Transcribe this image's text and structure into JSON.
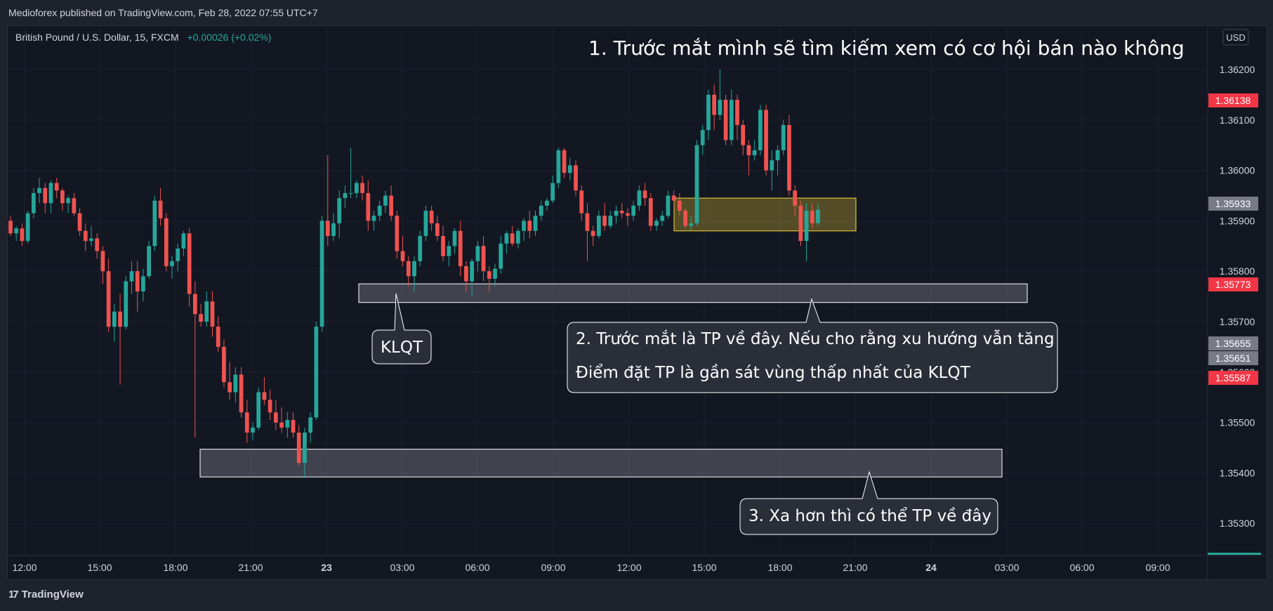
{
  "header": {
    "published_text": "Medioforex published on TradingView.com, Feb 28, 2022 07:55 UTC+7"
  },
  "footer": {
    "logo_text": "TradingView",
    "logo_glyph": "17"
  },
  "chart_info": {
    "symbol_text": "British Pound / U.S. Dollar, 15, FXCM",
    "change_text": "+0.00026 (+0.02%)",
    "currency_button": "USD"
  },
  "colors": {
    "up": "#26a69a",
    "down": "#ef5350",
    "background": "#131722",
    "panel": "#1e222d",
    "text": "#d1d4dc",
    "highlight_box": "#fdd835",
    "label_red": "#f23645",
    "label_gray": "#787b86"
  },
  "annotations": {
    "title": "1. Trước mắt mình sẽ tìm kiếm xem có cơ hội bán nào không",
    "klqt": "KLQT",
    "note2_line1": "2. Trước mắt là TP về đây. Nếu cho rằng xu hướng vẫn tăng",
    "note2_line2": "Điểm đặt TP là gần sát vùng thấp nhất của KLQT",
    "note3": "3. Xa hơn thì có thể TP về đây"
  },
  "price_labels": [
    {
      "text": "1.36138",
      "value": 1.36138,
      "color": "#f23645"
    },
    {
      "text": "1.35933",
      "value": 1.35933,
      "color": "#787b86"
    },
    {
      "text": "1.35773",
      "value": 1.35773,
      "color": "#f23645"
    },
    {
      "text": "1.35655",
      "value": 1.35655,
      "color": "#787b86"
    },
    {
      "text": "1.35651",
      "value": 1.35651,
      "color": "#787b86"
    },
    {
      "text": "1.35587",
      "value": 1.35587,
      "color": "#f23645"
    }
  ],
  "chart_data": {
    "type": "candlestick",
    "symbol": "GBPUSD",
    "timeframe": "15",
    "y_range": [
      1.3525,
      1.3624
    ],
    "y_ticks": [
      "1.36200",
      "1.36100",
      "1.36000",
      "1.35900",
      "1.35800",
      "1.35700",
      "1.35600",
      "1.35500",
      "1.35400",
      "1.35300"
    ],
    "x_ticks": [
      "12:00",
      "15:00",
      "18:00",
      "21:00",
      "23",
      "03:00",
      "06:00",
      "09:00",
      "12:00",
      "15:00",
      "18:00",
      "21:00",
      "24",
      "03:00",
      "06:00",
      "09:00"
    ],
    "zones": [
      {
        "name": "current-sell-zone",
        "top": 1.35945,
        "bottom": 1.3588
      },
      {
        "name": "klqt-tp-zone",
        "top": 1.35775,
        "bottom": 1.35738
      },
      {
        "name": "far-tp-zone",
        "top": 1.35447,
        "bottom": 1.35392
      }
    ],
    "candles": [
      [
        1.359,
        1.3591,
        1.3587,
        1.35875
      ],
      [
        1.35875,
        1.3589,
        1.3586,
        1.35885
      ],
      [
        1.35885,
        1.35895,
        1.3585,
        1.3586
      ],
      [
        1.3586,
        1.3592,
        1.35855,
        1.35915
      ],
      [
        1.35915,
        1.35965,
        1.35905,
        1.35955
      ],
      [
        1.35955,
        1.35985,
        1.35935,
        1.35965
      ],
      [
        1.35965,
        1.35975,
        1.35915,
        1.35935
      ],
      [
        1.35935,
        1.3598,
        1.35915,
        1.35975
      ],
      [
        1.35975,
        1.35985,
        1.35945,
        1.3596
      ],
      [
        1.3596,
        1.35965,
        1.3592,
        1.35935
      ],
      [
        1.35935,
        1.3595,
        1.35915,
        1.35945
      ],
      [
        1.35945,
        1.35955,
        1.3591,
        1.35915
      ],
      [
        1.35915,
        1.35925,
        1.3587,
        1.3588
      ],
      [
        1.3588,
        1.35895,
        1.3584,
        1.3586
      ],
      [
        1.3586,
        1.3589,
        1.3585,
        1.35865
      ],
      [
        1.35865,
        1.35875,
        1.35825,
        1.3584
      ],
      [
        1.3584,
        1.3585,
        1.35775,
        1.358
      ],
      [
        1.358,
        1.35825,
        1.3568,
        1.3569
      ],
      [
        1.3569,
        1.35735,
        1.3566,
        1.3572
      ],
      [
        1.3572,
        1.35755,
        1.35575,
        1.3569
      ],
      [
        1.3569,
        1.3579,
        1.35685,
        1.3578
      ],
      [
        1.3578,
        1.3582,
        1.35755,
        1.358
      ],
      [
        1.358,
        1.3582,
        1.3572,
        1.3576
      ],
      [
        1.3576,
        1.35805,
        1.3574,
        1.3579
      ],
      [
        1.3579,
        1.3586,
        1.35785,
        1.3585
      ],
      [
        1.3585,
        1.3595,
        1.3584,
        1.3594
      ],
      [
        1.3594,
        1.35965,
        1.3589,
        1.35905
      ],
      [
        1.35905,
        1.35915,
        1.358,
        1.3581
      ],
      [
        1.3581,
        1.3583,
        1.35785,
        1.3582
      ],
      [
        1.3582,
        1.35855,
        1.358,
        1.35845
      ],
      [
        1.35845,
        1.3588,
        1.3583,
        1.35875
      ],
      [
        1.35875,
        1.35885,
        1.3573,
        1.35755
      ],
      [
        1.35755,
        1.3578,
        1.3547,
        1.35715
      ],
      [
        1.35715,
        1.35735,
        1.3569,
        1.357
      ],
      [
        1.357,
        1.3576,
        1.3569,
        1.3574
      ],
      [
        1.3574,
        1.3576,
        1.3567,
        1.3569
      ],
      [
        1.3569,
        1.3571,
        1.3564,
        1.3565
      ],
      [
        1.3565,
        1.35665,
        1.3557,
        1.3558
      ],
      [
        1.3558,
        1.3562,
        1.35545,
        1.3556
      ],
      [
        1.3556,
        1.3561,
        1.3554,
        1.35595
      ],
      [
        1.35595,
        1.3561,
        1.3551,
        1.3552
      ],
      [
        1.3552,
        1.35545,
        1.3546,
        1.3548
      ],
      [
        1.3548,
        1.355,
        1.35465,
        1.3549
      ],
      [
        1.3549,
        1.3557,
        1.35485,
        1.3556
      ],
      [
        1.3556,
        1.3559,
        1.35535,
        1.35545
      ],
      [
        1.35545,
        1.35565,
        1.35505,
        1.3552
      ],
      [
        1.3552,
        1.35545,
        1.35485,
        1.355
      ],
      [
        1.355,
        1.3553,
        1.3548,
        1.3549
      ],
      [
        1.3549,
        1.3552,
        1.3547,
        1.35505
      ],
      [
        1.35505,
        1.3552,
        1.3547,
        1.3548
      ],
      [
        1.3548,
        1.35495,
        1.35415,
        1.3542
      ],
      [
        1.3542,
        1.3549,
        1.3539,
        1.3548
      ],
      [
        1.3548,
        1.3552,
        1.3546,
        1.3551
      ],
      [
        1.3551,
        1.357,
        1.35505,
        1.3569
      ],
      [
        1.3569,
        1.3591,
        1.3568,
        1.359
      ],
      [
        1.359,
        1.3603,
        1.3585,
        1.3587
      ],
      [
        1.3587,
        1.35915,
        1.3586,
        1.35895
      ],
      [
        1.35895,
        1.3596,
        1.35865,
        1.35945
      ],
      [
        1.35945,
        1.3597,
        1.35925,
        1.35955
      ],
      [
        1.35955,
        1.36045,
        1.35945,
        1.35955
      ],
      [
        1.35955,
        1.3598,
        1.35945,
        1.35975
      ],
      [
        1.35975,
        1.3599,
        1.3594,
        1.35955
      ],
      [
        1.35955,
        1.3598,
        1.3588,
        1.359
      ],
      [
        1.359,
        1.3592,
        1.3588,
        1.3591
      ],
      [
        1.3591,
        1.3594,
        1.359,
        1.3593
      ],
      [
        1.3593,
        1.3596,
        1.35915,
        1.3595
      ],
      [
        1.3595,
        1.3597,
        1.359,
        1.3591
      ],
      [
        1.3591,
        1.3592,
        1.35825,
        1.3584
      ],
      [
        1.3584,
        1.3587,
        1.3581,
        1.3582
      ],
      [
        1.3582,
        1.3583,
        1.3577,
        1.3579
      ],
      [
        1.3579,
        1.3583,
        1.3576,
        1.3582
      ],
      [
        1.3582,
        1.3588,
        1.3581,
        1.3587
      ],
      [
        1.3587,
        1.3593,
        1.3586,
        1.3592
      ],
      [
        1.3592,
        1.3593,
        1.3588,
        1.35895
      ],
      [
        1.35895,
        1.3591,
        1.3586,
        1.3587
      ],
      [
        1.3587,
        1.3589,
        1.3582,
        1.3583
      ],
      [
        1.3583,
        1.3586,
        1.3581,
        1.3585
      ],
      [
        1.3585,
        1.35885,
        1.35835,
        1.3588
      ],
      [
        1.3588,
        1.359,
        1.3579,
        1.3581
      ],
      [
        1.3581,
        1.3582,
        1.3576,
        1.3578
      ],
      [
        1.3578,
        1.35825,
        1.3575,
        1.3582
      ],
      [
        1.3582,
        1.3586,
        1.358,
        1.3585
      ],
      [
        1.3585,
        1.3587,
        1.3578,
        1.358
      ],
      [
        1.358,
        1.3581,
        1.3576,
        1.35785
      ],
      [
        1.35785,
        1.35815,
        1.3577,
        1.35805
      ],
      [
        1.35805,
        1.3587,
        1.35795,
        1.35855
      ],
      [
        1.35855,
        1.3588,
        1.35835,
        1.35875
      ],
      [
        1.35875,
        1.3589,
        1.3585,
        1.35855
      ],
      [
        1.35855,
        1.35885,
        1.35845,
        1.3588
      ],
      [
        1.3588,
        1.35905,
        1.3586,
        1.359
      ],
      [
        1.359,
        1.3592,
        1.35865,
        1.3588
      ],
      [
        1.3588,
        1.3592,
        1.3587,
        1.3591
      ],
      [
        1.3591,
        1.3594,
        1.359,
        1.3593
      ],
      [
        1.3593,
        1.35945,
        1.3592,
        1.3594
      ],
      [
        1.3594,
        1.3599,
        1.35935,
        1.35975
      ],
      [
        1.35975,
        1.36045,
        1.35965,
        1.3604
      ],
      [
        1.3604,
        1.36045,
        1.35985,
        1.35995
      ],
      [
        1.35995,
        1.36025,
        1.3598,
        1.3601
      ],
      [
        1.3601,
        1.3602,
        1.3595,
        1.3596
      ],
      [
        1.3596,
        1.3597,
        1.359,
        1.35915
      ],
      [
        1.35915,
        1.35935,
        1.3582,
        1.3588
      ],
      [
        1.3588,
        1.3589,
        1.3585,
        1.3587
      ],
      [
        1.3587,
        1.3592,
        1.35865,
        1.3591
      ],
      [
        1.3591,
        1.35935,
        1.3588,
        1.3589
      ],
      [
        1.3589,
        1.3592,
        1.35885,
        1.3591
      ],
      [
        1.3591,
        1.3593,
        1.35895,
        1.3592
      ],
      [
        1.3592,
        1.35935,
        1.35905,
        1.35915
      ],
      [
        1.35915,
        1.35925,
        1.3589,
        1.3591
      ],
      [
        1.3591,
        1.3594,
        1.359,
        1.3593
      ],
      [
        1.3593,
        1.3597,
        1.3592,
        1.3596
      ],
      [
        1.3596,
        1.35975,
        1.3593,
        1.35945
      ],
      [
        1.35945,
        1.35955,
        1.3588,
        1.3589
      ],
      [
        1.3589,
        1.35905,
        1.3588,
        1.359
      ],
      [
        1.359,
        1.3592,
        1.3589,
        1.3591
      ],
      [
        1.3591,
        1.3596,
        1.35905,
        1.3595
      ],
      [
        1.3595,
        1.3596,
        1.3592,
        1.3594
      ],
      [
        1.3594,
        1.35955,
        1.3591,
        1.3592
      ],
      [
        1.3592,
        1.35925,
        1.35885,
        1.3589
      ],
      [
        1.3589,
        1.3591,
        1.3588,
        1.35895
      ],
      [
        1.35895,
        1.3606,
        1.3589,
        1.3605
      ],
      [
        1.3605,
        1.3609,
        1.3603,
        1.3608
      ],
      [
        1.3608,
        1.3616,
        1.3606,
        1.3615
      ],
      [
        1.3615,
        1.3617,
        1.3608,
        1.3611
      ],
      [
        1.3611,
        1.362,
        1.361,
        1.3614
      ],
      [
        1.3614,
        1.3615,
        1.3605,
        1.3606
      ],
      [
        1.3606,
        1.3616,
        1.3605,
        1.3614
      ],
      [
        1.3614,
        1.3615,
        1.3606,
        1.3609
      ],
      [
        1.3609,
        1.361,
        1.3603,
        1.3605
      ],
      [
        1.3605,
        1.3606,
        1.3599,
        1.3603
      ],
      [
        1.3603,
        1.3606,
        1.3602,
        1.3604
      ],
      [
        1.3604,
        1.3613,
        1.3603,
        1.3612
      ],
      [
        1.3612,
        1.3613,
        1.3599,
        1.36
      ],
      [
        1.36,
        1.3604,
        1.3596,
        1.3602
      ],
      [
        1.3602,
        1.3605,
        1.3599,
        1.3604
      ],
      [
        1.3604,
        1.361,
        1.3603,
        1.3609
      ],
      [
        1.3609,
        1.3611,
        1.3595,
        1.3596
      ],
      [
        1.3596,
        1.3597,
        1.3591,
        1.3593
      ],
      [
        1.3593,
        1.3594,
        1.3585,
        1.3586
      ],
      [
        1.3586,
        1.35935,
        1.3582,
        1.3592
      ],
      [
        1.3592,
        1.35935,
        1.35885,
        1.35895
      ],
      [
        1.35895,
        1.35935,
        1.3589,
        1.35922
      ]
    ]
  }
}
